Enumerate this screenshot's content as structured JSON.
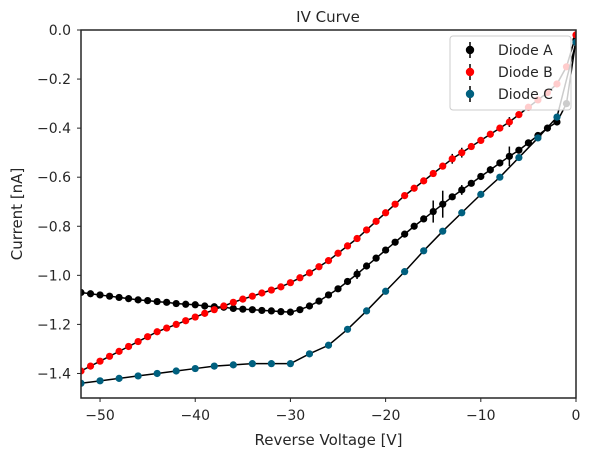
{
  "chart_data": {
    "type": "scatter",
    "title": "IV Curve",
    "xlabel": "Reverse Voltage [V]",
    "ylabel": "Current [nA]",
    "xlim": [
      -52,
      0
    ],
    "ylim": [
      -1.5,
      0.0
    ],
    "xticks": [
      -50,
      -40,
      -30,
      -20,
      -10,
      0
    ],
    "yticks": [
      -1.4,
      -1.2,
      -1.0,
      -0.8,
      -0.6,
      -0.4,
      -0.2,
      0.0
    ],
    "xtick_labels": [
      "−50",
      "−40",
      "−30",
      "−20",
      "−10",
      "0"
    ],
    "ytick_labels": [
      "−1.4",
      "−1.2",
      "−1.0",
      "−0.8",
      "−0.6",
      "−0.4",
      "−0.2",
      "0.0"
    ],
    "grid": false,
    "legend_position": "top-right",
    "series": [
      {
        "name": "Diode A",
        "color": "#000000",
        "x": [
          -52,
          -51,
          -50,
          -49,
          -48,
          -47,
          -46,
          -45,
          -44,
          -43,
          -42,
          -41,
          -40,
          -39,
          -38,
          -37,
          -36,
          -35,
          -34,
          -33,
          -32,
          -31,
          -30,
          -29,
          -28,
          -27,
          -26,
          -25,
          -24,
          -23,
          -22,
          -21,
          -20,
          -19,
          -18,
          -17,
          -16,
          -15,
          -14,
          -13,
          -12,
          -11,
          -10,
          -9,
          -8,
          -7,
          -6,
          -5,
          -4,
          -3,
          -2,
          -1,
          0
        ],
        "y": [
          -1.07,
          -1.075,
          -1.08,
          -1.085,
          -1.09,
          -1.095,
          -1.1,
          -1.103,
          -1.107,
          -1.11,
          -1.115,
          -1.118,
          -1.12,
          -1.125,
          -1.128,
          -1.13,
          -1.135,
          -1.138,
          -1.14,
          -1.143,
          -1.145,
          -1.148,
          -1.15,
          -1.14,
          -1.125,
          -1.105,
          -1.08,
          -1.055,
          -1.025,
          -0.995,
          -0.962,
          -0.93,
          -0.897,
          -0.865,
          -0.832,
          -0.8,
          -0.77,
          -0.74,
          -0.71,
          -0.68,
          -0.652,
          -0.625,
          -0.597,
          -0.57,
          -0.542,
          -0.515,
          -0.49,
          -0.46,
          -0.43,
          -0.4,
          -0.375,
          -0.3,
          -0.04
        ],
        "yerr": [
          0,
          0,
          0,
          0,
          0,
          0,
          0,
          0,
          0,
          0,
          0,
          0,
          0,
          0,
          0,
          0,
          0,
          0,
          0,
          0,
          0,
          0,
          0,
          0,
          0,
          0,
          0,
          0,
          0,
          0.02,
          0,
          0,
          0,
          0,
          0,
          0,
          0,
          0.045,
          0.055,
          0,
          0.02,
          0,
          0,
          0.015,
          0,
          0.04,
          0,
          0,
          0,
          0,
          0,
          0,
          0
        ]
      },
      {
        "name": "Diode B",
        "color": "#ff0000",
        "x": [
          -52,
          -51,
          -50,
          -49,
          -48,
          -47,
          -46,
          -45,
          -44,
          -43,
          -42,
          -41,
          -40,
          -39,
          -38,
          -37,
          -36,
          -35,
          -34,
          -33,
          -32,
          -31,
          -30,
          -29,
          -28,
          -27,
          -26,
          -25,
          -24,
          -23,
          -22,
          -21,
          -20,
          -19,
          -18,
          -17,
          -16,
          -15,
          -14,
          -13,
          -12,
          -11,
          -10,
          -9,
          -8,
          -7,
          -6,
          -5,
          -4,
          -3,
          -2,
          -1,
          0
        ],
        "y": [
          -1.39,
          -1.37,
          -1.35,
          -1.33,
          -1.31,
          -1.29,
          -1.27,
          -1.25,
          -1.23,
          -1.215,
          -1.2,
          -1.185,
          -1.17,
          -1.155,
          -1.14,
          -1.125,
          -1.11,
          -1.097,
          -1.085,
          -1.072,
          -1.06,
          -1.047,
          -1.03,
          -1.01,
          -0.99,
          -0.965,
          -0.94,
          -0.91,
          -0.88,
          -0.85,
          -0.815,
          -0.78,
          -0.745,
          -0.71,
          -0.675,
          -0.645,
          -0.615,
          -0.585,
          -0.555,
          -0.525,
          -0.5,
          -0.475,
          -0.45,
          -0.425,
          -0.4,
          -0.375,
          -0.345,
          -0.315,
          -0.285,
          -0.255,
          -0.22,
          -0.15,
          -0.02
        ],
        "yerr": [
          0,
          0,
          0,
          0,
          0,
          0,
          0,
          0,
          0,
          0,
          0,
          0,
          0,
          0,
          0,
          0,
          0,
          0,
          0,
          0,
          0,
          0,
          0,
          0,
          0,
          0,
          0,
          0,
          0,
          0,
          0,
          0,
          0,
          0,
          0,
          0,
          0,
          0,
          0,
          0.02,
          0.02,
          0,
          0,
          0,
          0,
          0.02,
          0,
          0,
          0,
          0,
          0,
          0,
          0
        ]
      },
      {
        "name": "Diode C",
        "color": "#00607f",
        "x": [
          -52,
          -50,
          -48,
          -46,
          -44,
          -42,
          -40,
          -38,
          -36,
          -34,
          -32,
          -30,
          -28,
          -26,
          -24,
          -22,
          -20,
          -18,
          -16,
          -14,
          -12,
          -10,
          -8,
          -6,
          -4,
          -2,
          0
        ],
        "y": [
          -1.44,
          -1.43,
          -1.42,
          -1.41,
          -1.4,
          -1.39,
          -1.38,
          -1.37,
          -1.365,
          -1.36,
          -1.36,
          -1.36,
          -1.32,
          -1.285,
          -1.22,
          -1.145,
          -1.065,
          -0.985,
          -0.9,
          -0.82,
          -0.745,
          -0.67,
          -0.6,
          -0.52,
          -0.44,
          -0.355,
          -0.05
        ],
        "yerr": [
          0,
          0,
          0,
          0,
          0,
          0,
          0,
          0,
          0,
          0,
          0,
          0,
          0,
          0,
          0,
          0,
          0,
          0,
          0,
          0,
          0,
          0,
          0,
          0,
          0,
          0,
          0
        ]
      }
    ]
  }
}
